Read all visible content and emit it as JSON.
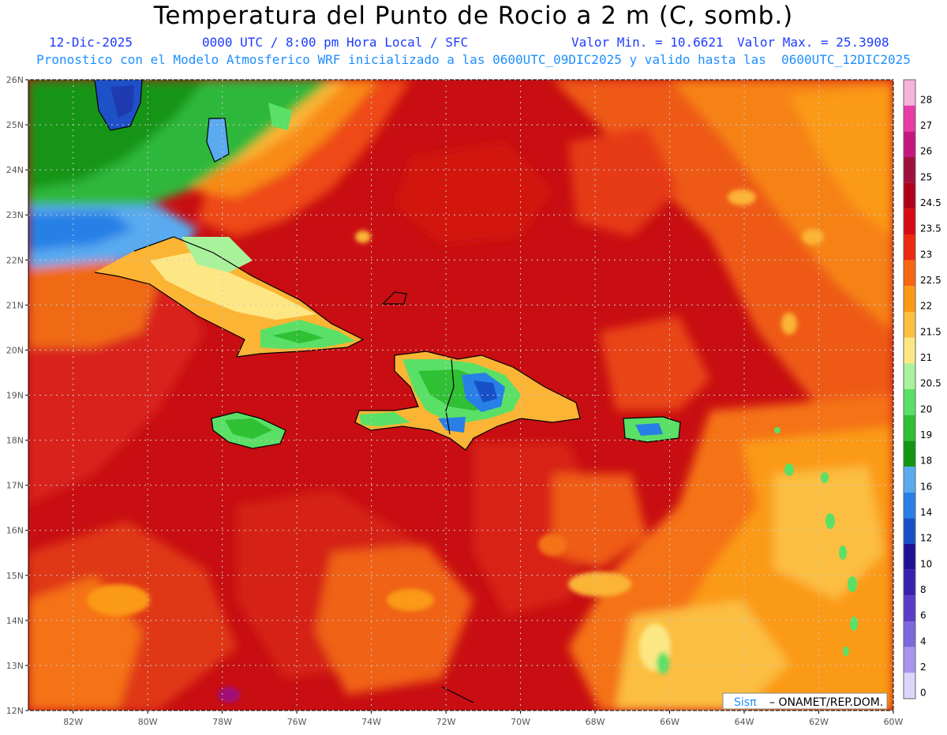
{
  "header": {
    "title": "Temperatura del Punto de Rocio a 2 m (C, somb.)",
    "date": "12-Dic-2025",
    "time_info": "0000 UTC / 8:00 pm Hora Local / SFC",
    "min_value": "Valor Min. = 10.6621",
    "max_value": "Valor Max. = 25.3908",
    "forecast_info": "Pronostico con el Modelo Atmosferico WRF inicializado a las 0600UTC_09DIC2025 y valido hasta las  0600UTC_12DIC2025"
  },
  "map": {
    "lat_labels": [
      "26N",
      "25N",
      "24N",
      "23N",
      "22N",
      "21N",
      "20N",
      "19N",
      "18N",
      "17N",
      "16N",
      "15N",
      "14N",
      "13N",
      "12N"
    ],
    "lon_labels": [
      "82W",
      "80W",
      "78W",
      "76W",
      "74W",
      "72W",
      "70W",
      "68W",
      "66W",
      "64W",
      "62W",
      "60W"
    ],
    "lat_range": [
      12,
      26
    ],
    "lon_range": [
      -83.2,
      -60
    ],
    "credit_logo": "Sisπ",
    "credit_text": "– ONAMET/REP.DOM."
  },
  "legend": {
    "labels": [
      "28",
      "27",
      "26",
      "25",
      "24.5",
      "23.5",
      "23",
      "22.5",
      "22",
      "21.5",
      "21",
      "20.5",
      "20",
      "19",
      "18",
      "16",
      "14",
      "12",
      "10",
      "8",
      "6",
      "4",
      "2",
      "0"
    ],
    "colors": [
      "#f5b4d9",
      "#e83ba6",
      "#c8167f",
      "#a0103c",
      "#b00018",
      "#d80a14",
      "#ec2a10",
      "#f86610",
      "#fb9a12",
      "#fcc040",
      "#fde784",
      "#a9f29c",
      "#5ae066",
      "#2fc034",
      "#129712",
      "#5aaaf0",
      "#2880e6",
      "#1650c8",
      "#1e1296",
      "#3a20b0",
      "#5a3cc8",
      "#7c68de",
      "#a894f0",
      "#dcd4fb"
    ]
  }
}
